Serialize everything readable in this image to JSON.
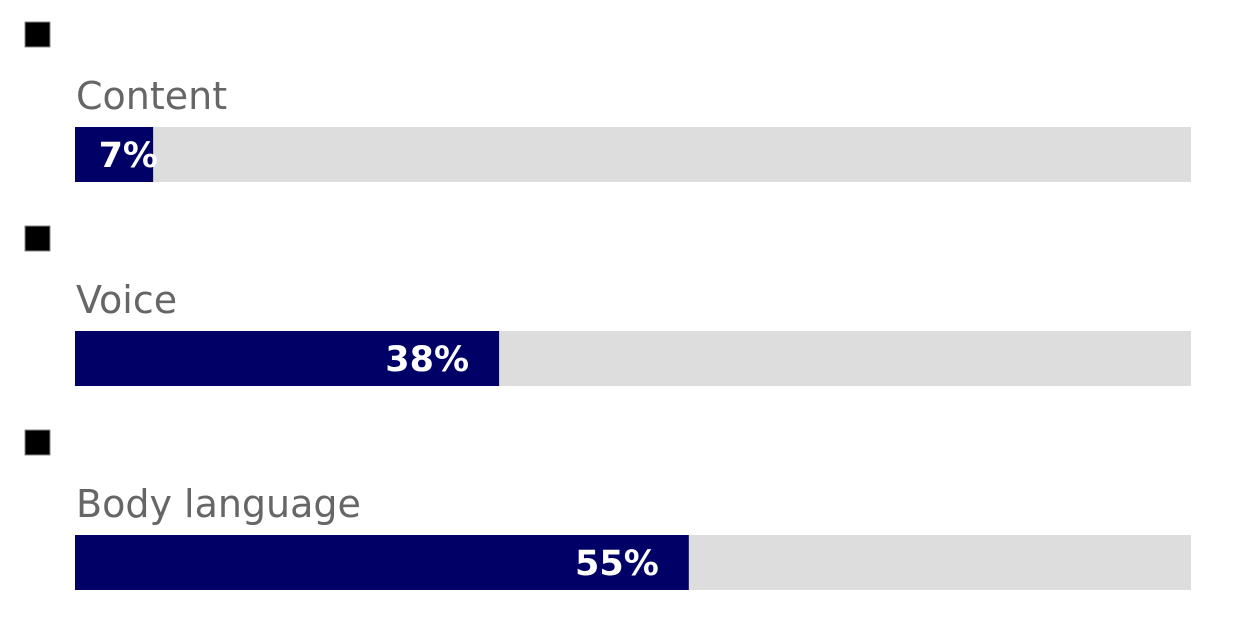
{
  "chart_data": {
    "type": "progress",
    "categories": [
      "Content",
      "Voice",
      "Body language"
    ],
    "values": [
      7,
      38,
      55
    ],
    "value_labels": [
      "7%",
      "38%",
      "55%"
    ],
    "xlim": [
      0,
      100
    ],
    "color": "#000066",
    "track_color": "#dddddd"
  }
}
